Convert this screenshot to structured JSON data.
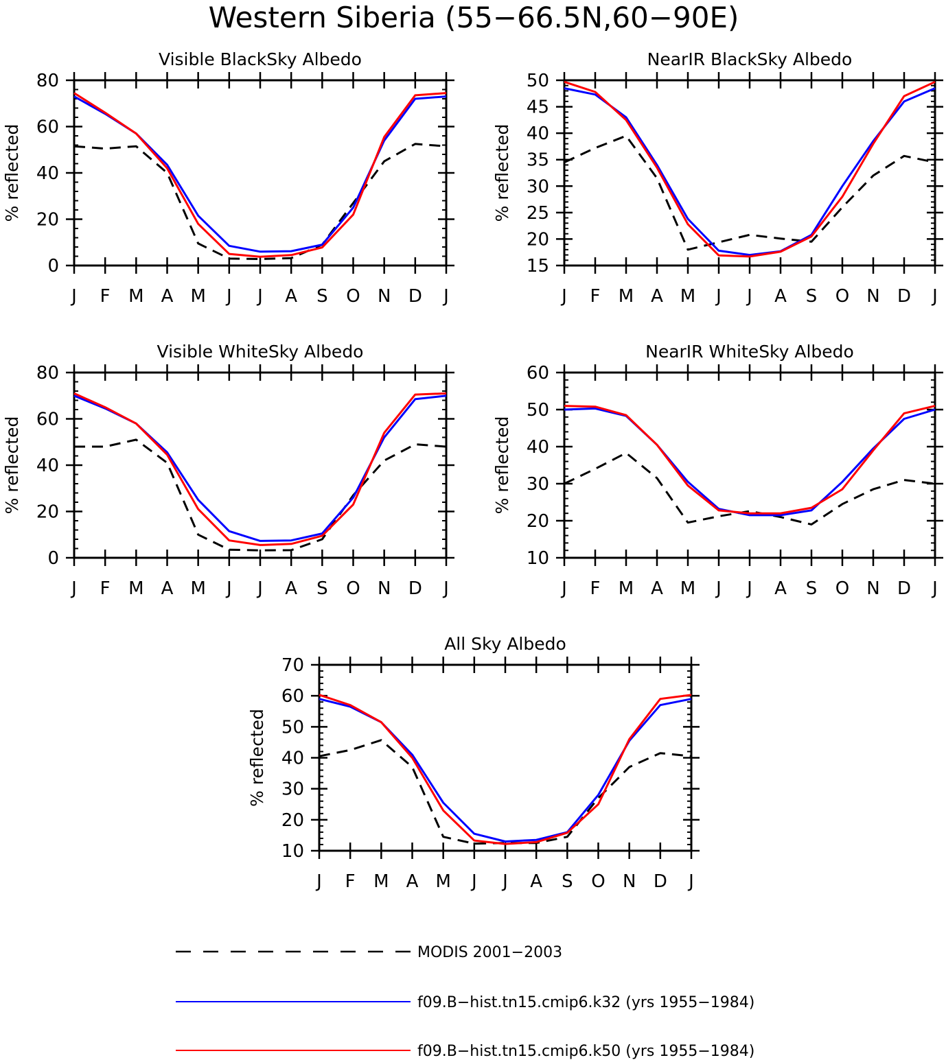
{
  "figure_title": "Western Siberia (55−66.5N,60−90E)",
  "colors": {
    "modis": "#000000",
    "k32": "#0000ff",
    "k50": "#ff0000"
  },
  "legend": {
    "items": [
      {
        "key": "modis",
        "label": "MODIS 2001−2003",
        "color": "#000000",
        "dashed": true
      },
      {
        "key": "k32",
        "label": "f09.B−hist.tn15.cmip6.k32 (yrs 1955−1984)",
        "color": "#0000ff",
        "dashed": false
      },
      {
        "key": "k50",
        "label": "f09.B−hist.tn15.cmip6.k50 (yrs 1955−1984)",
        "color": "#ff0000",
        "dashed": false
      }
    ]
  },
  "chart_data": [
    {
      "type": "line",
      "title": "Visible BlackSky Albedo",
      "ylabel": "% reflected",
      "categories": [
        "J",
        "F",
        "M",
        "A",
        "M",
        "J",
        "J",
        "A",
        "S",
        "O",
        "N",
        "D",
        "J"
      ],
      "ylim": [
        0,
        80
      ],
      "yticks": [
        0,
        20,
        40,
        60,
        80
      ],
      "series": [
        {
          "name": "MODIS 2001−2003",
          "key": "modis",
          "values": [
            51.5,
            50.5,
            51.5,
            40,
            9.5,
            3,
            2.8,
            3.2,
            9,
            27,
            45,
            52.5,
            51.5
          ]
        },
        {
          "name": "f09.B−hist.tn15.cmip6.k32 (yrs 1955−1984)",
          "key": "k32",
          "values": [
            73,
            65.5,
            57,
            43.5,
            21.5,
            8.5,
            6,
            6.2,
            9,
            25,
            54,
            72,
            73
          ]
        },
        {
          "name": "f09.B−hist.tn15.cmip6.k50 (yrs 1955−1984)",
          "key": "k50",
          "values": [
            74.5,
            66,
            57,
            42,
            18,
            5,
            3.8,
            4.5,
            7.8,
            22,
            55.5,
            73.5,
            74.5
          ]
        }
      ]
    },
    {
      "type": "line",
      "title": "NearIR BlackSky Albedo",
      "ylabel": "% reflected",
      "categories": [
        "J",
        "F",
        "M",
        "A",
        "M",
        "J",
        "J",
        "A",
        "S",
        "O",
        "N",
        "D",
        "J"
      ],
      "ylim": [
        15,
        50
      ],
      "yticks": [
        15,
        20,
        25,
        30,
        35,
        40,
        45,
        50
      ],
      "series": [
        {
          "name": "MODIS 2001−2003",
          "key": "modis",
          "values": [
            34.5,
            37.2,
            39.5,
            31.5,
            18,
            19.4,
            20.8,
            20.1,
            19.5,
            26,
            32,
            35.7,
            34.5
          ]
        },
        {
          "name": "f09.B−hist.tn15.cmip6.k32 (yrs 1955−1984)",
          "key": "k32",
          "values": [
            48.5,
            47.3,
            43,
            34,
            23.8,
            17.8,
            17,
            17.7,
            20.8,
            30,
            38.5,
            46,
            48.5
          ]
        },
        {
          "name": "f09.B−hist.tn15.cmip6.k50 (yrs 1955−1984)",
          "key": "k50",
          "values": [
            49.7,
            47.8,
            42.5,
            33.5,
            22.8,
            16.9,
            16.7,
            17.6,
            20.5,
            28,
            38,
            47,
            49.7
          ]
        }
      ]
    },
    {
      "type": "line",
      "title": "Visible WhiteSky Albedo",
      "ylabel": "% reflected",
      "categories": [
        "J",
        "F",
        "M",
        "A",
        "M",
        "J",
        "J",
        "A",
        "S",
        "O",
        "N",
        "D",
        "J"
      ],
      "ylim": [
        0,
        80
      ],
      "yticks": [
        0,
        20,
        40,
        60,
        80
      ],
      "series": [
        {
          "name": "MODIS 2001−2003",
          "key": "modis",
          "values": [
            48,
            48,
            51,
            41,
            10,
            3.5,
            3.2,
            3.3,
            8,
            27,
            42,
            49,
            48
          ]
        },
        {
          "name": "f09.B−hist.tn15.cmip6.k32 (yrs 1955−1984)",
          "key": "k32",
          "values": [
            70,
            64.5,
            58,
            45.5,
            25,
            11.5,
            7.3,
            7.5,
            10.5,
            26,
            52,
            68.5,
            70
          ]
        },
        {
          "name": "f09.B−hist.tn15.cmip6.k50 (yrs 1955−1984)",
          "key": "k50",
          "values": [
            71,
            65,
            58,
            44.5,
            21,
            7.5,
            5.5,
            6,
            9.5,
            23,
            54,
            70.5,
            71
          ]
        }
      ]
    },
    {
      "type": "line",
      "title": "NearIR WhiteSky Albedo",
      "ylabel": "% reflected",
      "categories": [
        "J",
        "F",
        "M",
        "A",
        "M",
        "J",
        "J",
        "A",
        "S",
        "O",
        "N",
        "D",
        "J"
      ],
      "ylim": [
        10,
        60
      ],
      "yticks": [
        10,
        20,
        30,
        40,
        50,
        60
      ],
      "series": [
        {
          "name": "MODIS 2001−2003",
          "key": "modis",
          "values": [
            30,
            34,
            38.3,
            31.5,
            19.5,
            21.2,
            22.6,
            21,
            19,
            24.5,
            28.5,
            31,
            30
          ]
        },
        {
          "name": "f09.B−hist.tn15.cmip6.k32 (yrs 1955−1984)",
          "key": "k32",
          "values": [
            50,
            50.3,
            48.3,
            40.5,
            30.5,
            23.2,
            21.5,
            21.5,
            22.8,
            30.5,
            39.5,
            47.5,
            50
          ]
        },
        {
          "name": "f09.B−hist.tn15.cmip6.k50 (yrs 1955−1984)",
          "key": "k50",
          "values": [
            51,
            50.8,
            48.5,
            40.5,
            29.5,
            22.8,
            22,
            22,
            23.5,
            28.5,
            39,
            49,
            51
          ]
        }
      ]
    },
    {
      "type": "line",
      "title": "All Sky Albedo",
      "ylabel": "% reflected",
      "categories": [
        "J",
        "F",
        "M",
        "A",
        "M",
        "J",
        "J",
        "A",
        "S",
        "O",
        "N",
        "D",
        "J"
      ],
      "ylim": [
        10,
        70
      ],
      "yticks": [
        10,
        20,
        30,
        40,
        50,
        60,
        70
      ],
      "series": [
        {
          "name": "MODIS 2001−2003",
          "key": "modis",
          "values": [
            40.5,
            42.5,
            45.7,
            37,
            14.5,
            12.3,
            12.5,
            12.5,
            14.5,
            27,
            37,
            41.5,
            40.5
          ]
        },
        {
          "name": "f09.B−hist.tn15.cmip6.k32 (yrs 1955−1984)",
          "key": "k32",
          "values": [
            59,
            56.5,
            51.5,
            41,
            25.5,
            15.5,
            13,
            13.5,
            16,
            28,
            45.5,
            57,
            59
          ]
        },
        {
          "name": "f09.B−hist.tn15.cmip6.k50 (yrs 1955−1984)",
          "key": "k50",
          "values": [
            60.3,
            57,
            51.5,
            40,
            23,
            13.3,
            12.2,
            12.8,
            15.8,
            25,
            46,
            59,
            60.3
          ]
        }
      ]
    }
  ]
}
